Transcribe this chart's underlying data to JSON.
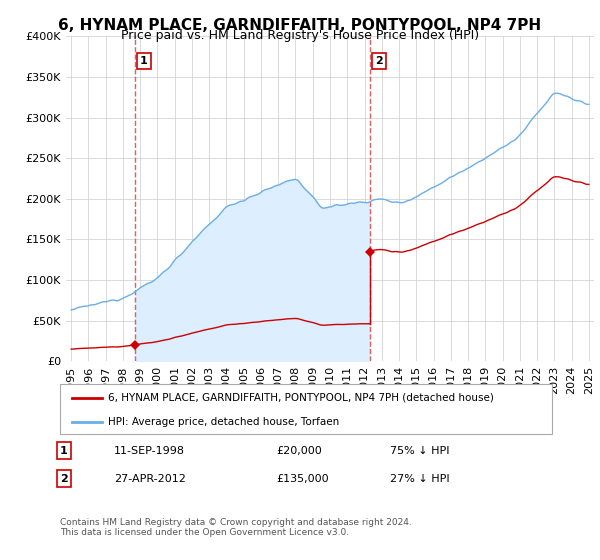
{
  "title": "6, HYNAM PLACE, GARNDIFFAITH, PONTYPOOL, NP4 7PH",
  "subtitle": "Price paid vs. HM Land Registry's House Price Index (HPI)",
  "ylim": [
    0,
    400000
  ],
  "yticks": [
    0,
    50000,
    100000,
    150000,
    200000,
    250000,
    300000,
    350000,
    400000
  ],
  "ytick_labels": [
    "£0",
    "£50K",
    "£100K",
    "£150K",
    "£200K",
    "£250K",
    "£300K",
    "£350K",
    "£400K"
  ],
  "hpi_color": "#6aaee8",
  "price_color": "#cc0000",
  "vline_color": "#e06060",
  "fill_color": "#dceeff",
  "sale1_date": 1998.69,
  "sale1_price": 20000,
  "sale1_label": "1",
  "sale2_date": 2012.31,
  "sale2_price": 135000,
  "sale2_label": "2",
  "legend_entry1": "6, HYNAM PLACE, GARNDIFFAITH, PONTYPOOL, NP4 7PH (detached house)",
  "legend_entry2": "HPI: Average price, detached house, Torfaen",
  "table_row1": [
    "1",
    "11-SEP-1998",
    "£20,000",
    "75% ↓ HPI"
  ],
  "table_row2": [
    "2",
    "27-APR-2012",
    "£135,000",
    "27% ↓ HPI"
  ],
  "footer": "Contains HM Land Registry data © Crown copyright and database right 2024.\nThis data is licensed under the Open Government Licence v3.0.",
  "background_color": "#ffffff",
  "grid_color": "#cccccc",
  "title_fontsize": 11,
  "subtitle_fontsize": 9,
  "tick_fontsize": 8
}
